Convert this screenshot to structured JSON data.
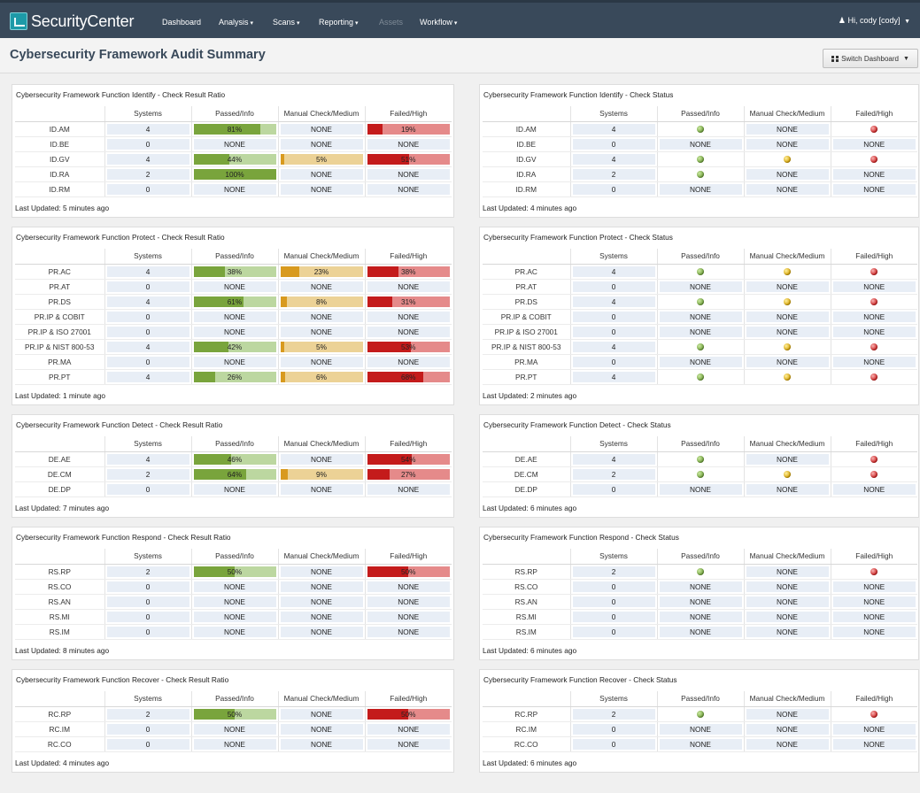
{
  "colors": {
    "topbar": "#39495a",
    "pass_dark": "#79a43c",
    "pass_light": "#bcd7a0",
    "manual_dark": "#d89a1f",
    "manual_light": "#ecd296",
    "fail_dark": "#c41b1b",
    "fail_light": "#e58a8a",
    "cell": "#e8eef6"
  },
  "header": {
    "logo_text": "SecurityCenter",
    "logo_icon": "securitycenter-logo-icon",
    "nav": [
      {
        "label": "Dashboard",
        "dropdown": false,
        "disabled": false
      },
      {
        "label": "Analysis",
        "dropdown": true,
        "disabled": false
      },
      {
        "label": "Scans",
        "dropdown": true,
        "disabled": false
      },
      {
        "label": "Reporting",
        "dropdown": true,
        "disabled": false
      },
      {
        "label": "Assets",
        "dropdown": false,
        "disabled": true
      },
      {
        "label": "Workflow",
        "dropdown": true,
        "disabled": false
      }
    ],
    "user_label": "Hi, cody [cody]",
    "user_icon": "user-icon"
  },
  "page": {
    "title": "Cybersecurity Framework Audit Summary",
    "switch_label": "Switch Dashboard",
    "switch_icon": "grid-icon"
  },
  "columns": [
    "Systems",
    "Passed/Info",
    "Manual Check/Medium",
    "Failed/High"
  ],
  "panels": [
    {
      "title": "Cybersecurity Framework Function Identify - Check Result Ratio",
      "type": "ratio",
      "updated": "Last Updated: 5 minutes ago",
      "rows": [
        {
          "name": "ID.AM",
          "systems": "4",
          "passed": "81%",
          "manual": "NONE",
          "failed": "19%"
        },
        {
          "name": "ID.BE",
          "systems": "0",
          "passed": "NONE",
          "manual": "NONE",
          "failed": "NONE"
        },
        {
          "name": "ID.GV",
          "systems": "4",
          "passed": "44%",
          "manual": "5%",
          "failed": "51%"
        },
        {
          "name": "ID.RA",
          "systems": "2",
          "passed": "100%",
          "manual": "NONE",
          "failed": "NONE"
        },
        {
          "name": "ID.RM",
          "systems": "0",
          "passed": "NONE",
          "manual": "NONE",
          "failed": "NONE"
        }
      ]
    },
    {
      "title": "Cybersecurity Framework Function Identify - Check Status",
      "type": "status",
      "updated": "Last Updated: 4 minutes ago",
      "rows": [
        {
          "name": "ID.AM",
          "systems": "4",
          "passed": "green",
          "manual": "NONE",
          "failed": "red"
        },
        {
          "name": "ID.BE",
          "systems": "0",
          "passed": "NONE",
          "manual": "NONE",
          "failed": "NONE"
        },
        {
          "name": "ID.GV",
          "systems": "4",
          "passed": "green",
          "manual": "yellow",
          "failed": "red"
        },
        {
          "name": "ID.RA",
          "systems": "2",
          "passed": "green",
          "manual": "NONE",
          "failed": "NONE"
        },
        {
          "name": "ID.RM",
          "systems": "0",
          "passed": "NONE",
          "manual": "NONE",
          "failed": "NONE"
        }
      ]
    },
    {
      "title": "Cybersecurity Framework Function Protect - Check Result Ratio",
      "type": "ratio",
      "updated": "Last Updated: 1 minute ago",
      "rows": [
        {
          "name": "PR.AC",
          "systems": "4",
          "passed": "38%",
          "manual": "23%",
          "failed": "38%"
        },
        {
          "name": "PR.AT",
          "systems": "0",
          "passed": "NONE",
          "manual": "NONE",
          "failed": "NONE"
        },
        {
          "name": "PR.DS",
          "systems": "4",
          "passed": "61%",
          "manual": "8%",
          "failed": "31%"
        },
        {
          "name": "PR.IP & COBIT",
          "systems": "0",
          "passed": "NONE",
          "manual": "NONE",
          "failed": "NONE"
        },
        {
          "name": "PR.IP & ISO 27001",
          "systems": "0",
          "passed": "NONE",
          "manual": "NONE",
          "failed": "NONE"
        },
        {
          "name": "PR.IP & NIST 800-53",
          "systems": "4",
          "passed": "42%",
          "manual": "5%",
          "failed": "53%"
        },
        {
          "name": "PR.MA",
          "systems": "0",
          "passed": "NONE",
          "manual": "NONE",
          "failed": "NONE"
        },
        {
          "name": "PR.PT",
          "systems": "4",
          "passed": "26%",
          "manual": "6%",
          "failed": "68%"
        }
      ]
    },
    {
      "title": "Cybersecurity Framework Function Protect - Check Status",
      "type": "status",
      "updated": "Last Updated: 2 minutes ago",
      "rows": [
        {
          "name": "PR.AC",
          "systems": "4",
          "passed": "green",
          "manual": "yellow",
          "failed": "red"
        },
        {
          "name": "PR.AT",
          "systems": "0",
          "passed": "NONE",
          "manual": "NONE",
          "failed": "NONE"
        },
        {
          "name": "PR.DS",
          "systems": "4",
          "passed": "green",
          "manual": "yellow",
          "failed": "red"
        },
        {
          "name": "PR.IP & COBIT",
          "systems": "0",
          "passed": "NONE",
          "manual": "NONE",
          "failed": "NONE"
        },
        {
          "name": "PR.IP & ISO 27001",
          "systems": "0",
          "passed": "NONE",
          "manual": "NONE",
          "failed": "NONE"
        },
        {
          "name": "PR.IP & NIST 800-53",
          "systems": "4",
          "passed": "green",
          "manual": "yellow",
          "failed": "red"
        },
        {
          "name": "PR.MA",
          "systems": "0",
          "passed": "NONE",
          "manual": "NONE",
          "failed": "NONE"
        },
        {
          "name": "PR.PT",
          "systems": "4",
          "passed": "green",
          "manual": "yellow",
          "failed": "red"
        }
      ]
    },
    {
      "title": "Cybersecurity Framework Function Detect - Check Result Ratio",
      "type": "ratio",
      "updated": "Last Updated: 7 minutes ago",
      "rows": [
        {
          "name": "DE.AE",
          "systems": "4",
          "passed": "46%",
          "manual": "NONE",
          "failed": "54%"
        },
        {
          "name": "DE.CM",
          "systems": "2",
          "passed": "64%",
          "manual": "9%",
          "failed": "27%"
        },
        {
          "name": "DE.DP",
          "systems": "0",
          "passed": "NONE",
          "manual": "NONE",
          "failed": "NONE"
        }
      ]
    },
    {
      "title": "Cybersecurity Framework Function Detect - Check Status",
      "type": "status",
      "updated": "Last Updated: 6 minutes ago",
      "rows": [
        {
          "name": "DE.AE",
          "systems": "4",
          "passed": "green",
          "manual": "NONE",
          "failed": "red"
        },
        {
          "name": "DE.CM",
          "systems": "2",
          "passed": "green",
          "manual": "yellow",
          "failed": "red"
        },
        {
          "name": "DE.DP",
          "systems": "0",
          "passed": "NONE",
          "manual": "NONE",
          "failed": "NONE"
        }
      ]
    },
    {
      "title": "Cybersecurity Framework Function Respond - Check Result Ratio",
      "type": "ratio",
      "updated": "Last Updated: 8 minutes ago",
      "rows": [
        {
          "name": "RS.RP",
          "systems": "2",
          "passed": "50%",
          "manual": "NONE",
          "failed": "50%"
        },
        {
          "name": "RS.CO",
          "systems": "0",
          "passed": "NONE",
          "manual": "NONE",
          "failed": "NONE"
        },
        {
          "name": "RS.AN",
          "systems": "0",
          "passed": "NONE",
          "manual": "NONE",
          "failed": "NONE"
        },
        {
          "name": "RS.MI",
          "systems": "0",
          "passed": "NONE",
          "manual": "NONE",
          "failed": "NONE"
        },
        {
          "name": "RS.IM",
          "systems": "0",
          "passed": "NONE",
          "manual": "NONE",
          "failed": "NONE"
        }
      ]
    },
    {
      "title": "Cybersecurity Framework Function Respond - Check Status",
      "type": "status",
      "updated": "Last Updated: 6 minutes ago",
      "rows": [
        {
          "name": "RS.RP",
          "systems": "2",
          "passed": "green",
          "manual": "NONE",
          "failed": "red"
        },
        {
          "name": "RS.CO",
          "systems": "0",
          "passed": "NONE",
          "manual": "NONE",
          "failed": "NONE"
        },
        {
          "name": "RS.AN",
          "systems": "0",
          "passed": "NONE",
          "manual": "NONE",
          "failed": "NONE"
        },
        {
          "name": "RS.MI",
          "systems": "0",
          "passed": "NONE",
          "manual": "NONE",
          "failed": "NONE"
        },
        {
          "name": "RS.IM",
          "systems": "0",
          "passed": "NONE",
          "manual": "NONE",
          "failed": "NONE"
        }
      ]
    },
    {
      "title": "Cybersecurity Framework Function Recover - Check Result Ratio",
      "type": "ratio",
      "updated": "Last Updated: 4 minutes ago",
      "rows": [
        {
          "name": "RC.RP",
          "systems": "2",
          "passed": "50%",
          "manual": "NONE",
          "failed": "50%"
        },
        {
          "name": "RC.IM",
          "systems": "0",
          "passed": "NONE",
          "manual": "NONE",
          "failed": "NONE"
        },
        {
          "name": "RC.CO",
          "systems": "0",
          "passed": "NONE",
          "manual": "NONE",
          "failed": "NONE"
        }
      ]
    },
    {
      "title": "Cybersecurity Framework Function Recover - Check Status",
      "type": "status",
      "updated": "Last Updated: 6 minutes ago",
      "rows": [
        {
          "name": "RC.RP",
          "systems": "2",
          "passed": "green",
          "manual": "NONE",
          "failed": "red"
        },
        {
          "name": "RC.IM",
          "systems": "0",
          "passed": "NONE",
          "manual": "NONE",
          "failed": "NONE"
        },
        {
          "name": "RC.CO",
          "systems": "0",
          "passed": "NONE",
          "manual": "NONE",
          "failed": "NONE"
        }
      ]
    }
  ]
}
